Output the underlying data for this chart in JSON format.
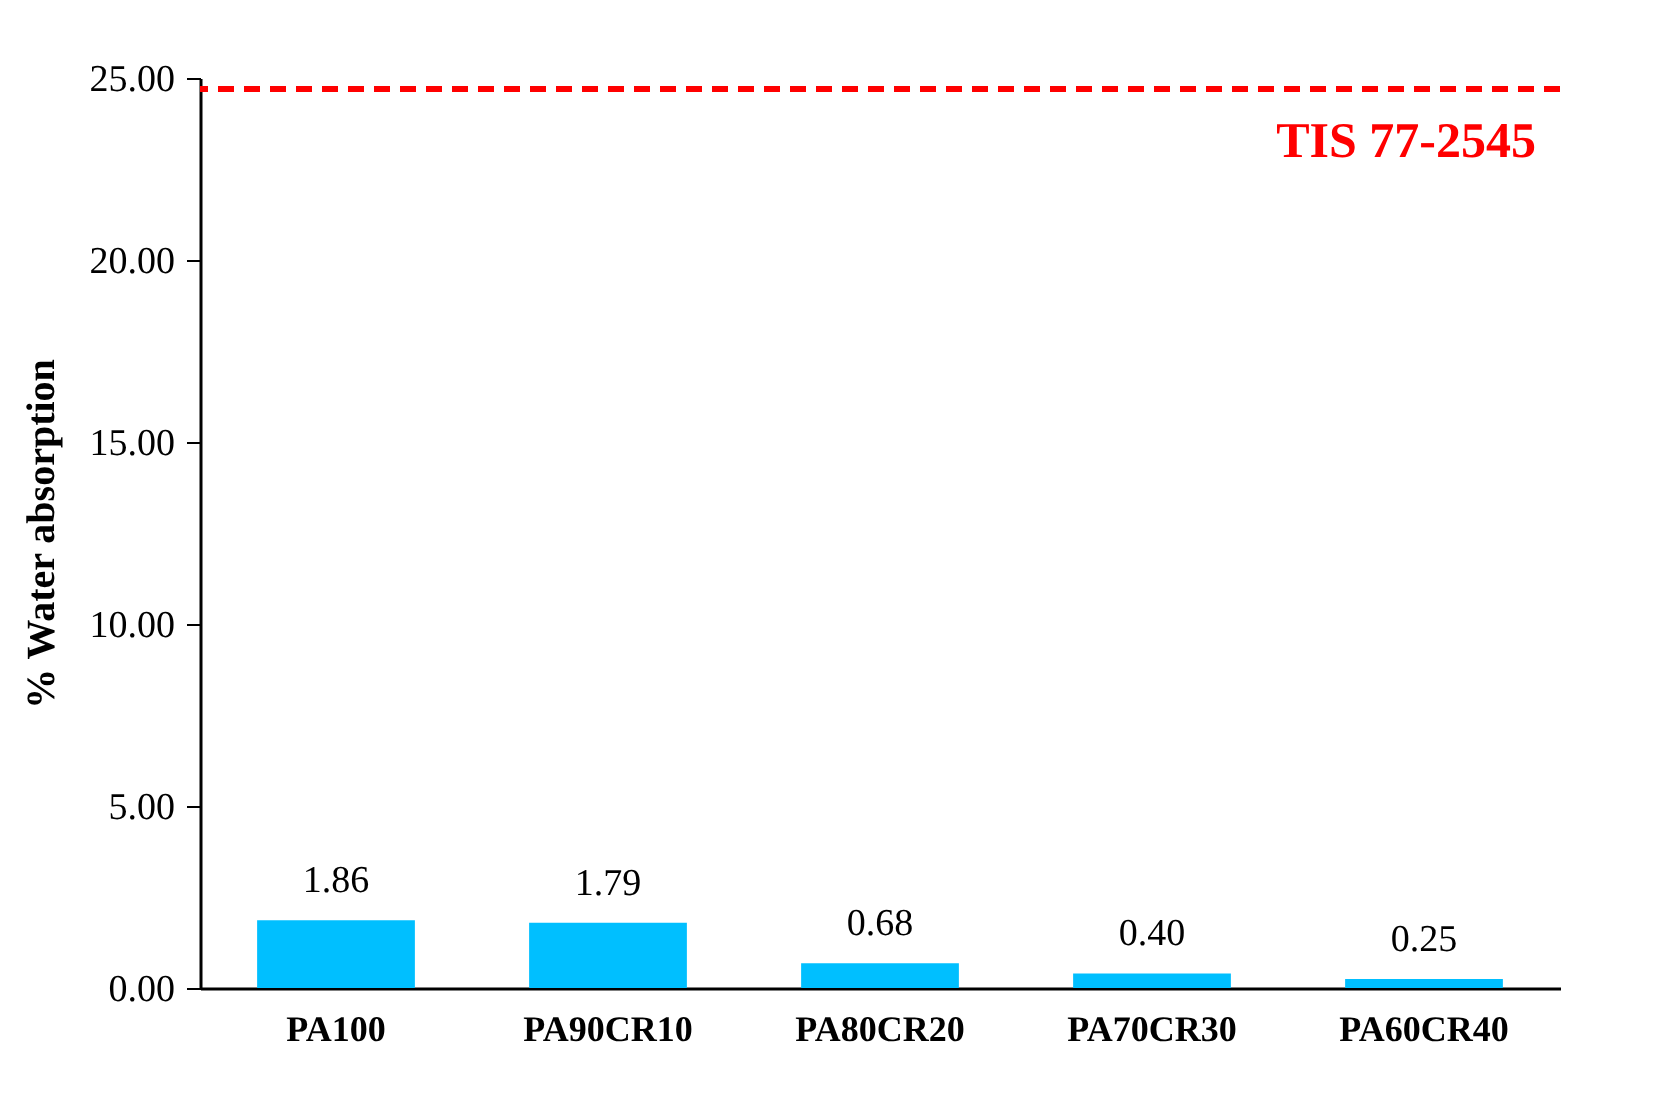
{
  "chart_data": {
    "type": "bar",
    "ylabel": "% Water absorption",
    "categories": [
      "PA100",
      "PA90CR10",
      "PA80CR20",
      "PA70CR30",
      "PA60CR40"
    ],
    "values": [
      1.86,
      1.79,
      0.68,
      0.4,
      0.25
    ],
    "value_labels": [
      "1.86",
      "1.79",
      "0.68",
      "0.40",
      "0.25"
    ],
    "color": "#00bfff",
    "ylim": [
      0,
      25
    ],
    "yticks": [
      {
        "value": 0,
        "label": "0.00"
      },
      {
        "value": 5,
        "label": "5.00"
      },
      {
        "value": 10,
        "label": "10.00"
      },
      {
        "value": 15,
        "label": "15.00"
      },
      {
        "value": 20,
        "label": "20.00"
      },
      {
        "value": 25,
        "label": "25.00"
      }
    ],
    "ref_lines": [
      {
        "axis": "y",
        "value": 24.7,
        "label": "TIS 77-2545",
        "color": "#ff0000",
        "line_style": "dashed"
      }
    ],
    "grid": false
  }
}
